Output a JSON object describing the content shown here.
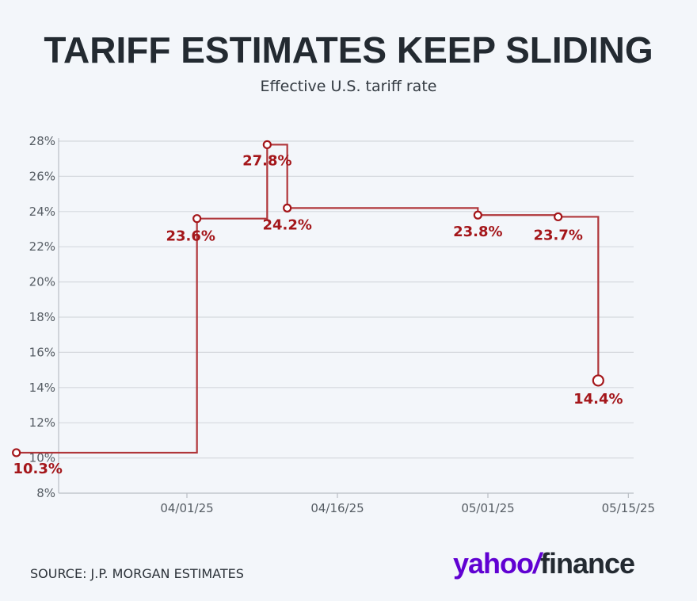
{
  "header": {
    "title": "TARIFF ESTIMATES KEEP SLIDING",
    "subtitle": "Effective U.S. tariff rate"
  },
  "footer": {
    "source": "SOURCE: J.P. MORGAN ESTIMATES",
    "logo_part1": "yahoo",
    "logo_slash": "/",
    "logo_part2": "finance"
  },
  "colors": {
    "background": "#f3f6fa",
    "series": "#b0363a",
    "label": "#a4161a",
    "grid": "#d5d9de",
    "brand_purple": "#6001d2"
  },
  "chart_data": {
    "type": "line",
    "step": true,
    "title": "TARIFF ESTIMATES KEEP SLIDING",
    "subtitle": "Effective U.S. tariff rate",
    "xlabel": "",
    "ylabel": "",
    "x_ticks": [
      "04/01/25",
      "04/16/25",
      "05/01/25",
      "05/15/25"
    ],
    "y_ticks": [
      "8%",
      "10%",
      "12%",
      "14%",
      "16%",
      "18%",
      "20%",
      "22%",
      "24%",
      "26%",
      "28%"
    ],
    "ylim": [
      8,
      28
    ],
    "grid": true,
    "series": [
      {
        "points": [
          {
            "x": "03/15/25",
            "y": 10.3,
            "label": "10.3%"
          },
          {
            "x": "04/02/25",
            "y": 23.6,
            "label": "23.6%"
          },
          {
            "x": "04/09/25",
            "y": 27.8,
            "label": "27.8%"
          },
          {
            "x": "04/11/25",
            "y": 24.2,
            "label": "24.2%"
          },
          {
            "x": "04/30/25",
            "y": 23.8,
            "label": "23.8%"
          },
          {
            "x": "05/08/25",
            "y": 23.7,
            "label": "23.7%"
          },
          {
            "x": "05/12/25",
            "y": 14.4,
            "label": "14.4%"
          }
        ]
      }
    ]
  }
}
